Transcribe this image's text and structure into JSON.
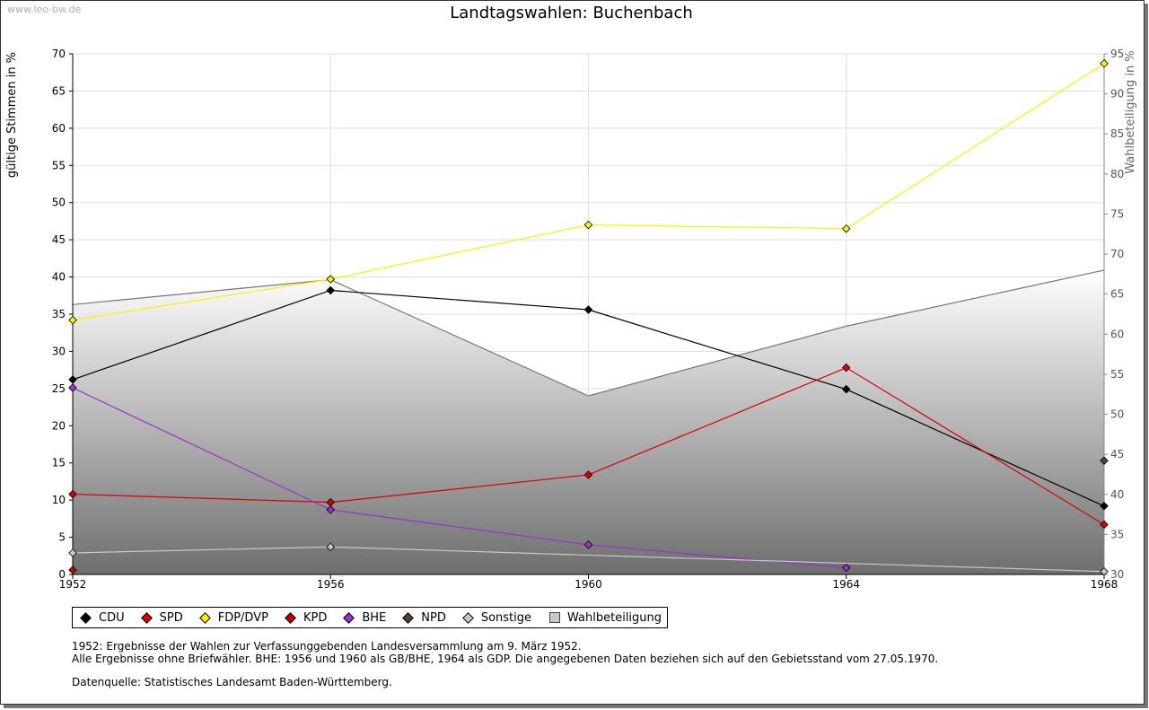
{
  "watermark": "www.leo-bw.de",
  "notes": {
    "line1": "1952: Ergebnisse der Wahlen zur Verfassunggebenden Landesversammlung am 9. März 1952.",
    "line2": "Alle Ergebnisse ohne Briefwähler. BHE: 1956 und 1960 als GB/BHE, 1964 als GDP. Die angegebenen Daten beziehen sich auf den Gebietsstand vom 27.05.1970.",
    "source": "Datenquelle: Statistisches Landesamt Baden-Württemberg."
  },
  "chart_data": {
    "type": "line",
    "title": "Landtagswahlen: Buchenbach",
    "ylabel": "gültige Stimmen in %",
    "y2label": "Wahlbeteiligung in %",
    "x": [
      1952,
      1956,
      1960,
      1964,
      1968
    ],
    "xlim": [
      1952,
      1968
    ],
    "ylim": [
      0,
      70
    ],
    "y2lim": [
      30,
      95
    ],
    "yticks": [
      0,
      5,
      10,
      15,
      20,
      25,
      30,
      35,
      40,
      45,
      50,
      55,
      60,
      65,
      70
    ],
    "y2ticks": [
      30,
      35,
      40,
      45,
      50,
      55,
      60,
      65,
      70,
      75,
      80,
      85,
      90,
      95
    ],
    "grid": true,
    "legend_position": "bottom",
    "series": [
      {
        "name": "CDU",
        "color": "#000000",
        "values": [
          26.2,
          38.2,
          35.6,
          24.9,
          9.2
        ]
      },
      {
        "name": "SPD",
        "color": "#dd0000",
        "values": [
          10.8,
          9.7,
          13.4,
          27.8,
          6.7
        ]
      },
      {
        "name": "FDP/DVP",
        "color": "#ffee00",
        "values": [
          34.2,
          39.7,
          47.0,
          46.5,
          68.7
        ]
      },
      {
        "name": "KPD",
        "color": "#bb0000",
        "values": [
          0.6,
          null,
          null,
          null,
          null
        ]
      },
      {
        "name": "BHE",
        "color": "#9933cc",
        "values": [
          25.1,
          8.7,
          4.0,
          0.9,
          null
        ]
      },
      {
        "name": "NPD",
        "color": "#5a4030",
        "values": [
          null,
          null,
          null,
          null,
          15.3
        ]
      },
      {
        "name": "Sonstige",
        "color": "#c8c8c8",
        "values": [
          2.9,
          3.7,
          null,
          null,
          0.4
        ]
      }
    ],
    "turnout": {
      "name": "Wahlbeteiligung",
      "axis": "right",
      "values": [
        63.7,
        66.8,
        52.3,
        61.0,
        68.0
      ]
    }
  }
}
